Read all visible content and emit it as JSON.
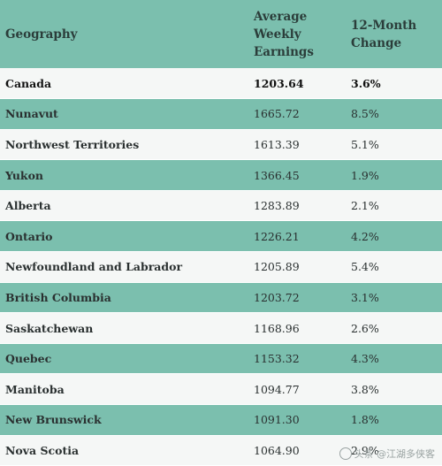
{
  "header": {
    "geography": "Geography",
    "earnings": "Average Weekly Earnings",
    "change": "12-Month Change"
  },
  "rows": [
    {
      "geo": "Canada",
      "earnings": "1203.64",
      "change": "3.6%"
    },
    {
      "geo": "Nunavut",
      "earnings": "1665.72",
      "change": "8.5%"
    },
    {
      "geo": "Northwest Territories",
      "earnings": "1613.39",
      "change": "5.1%"
    },
    {
      "geo": "Yukon",
      "earnings": "1366.45",
      "change": "1.9%"
    },
    {
      "geo": "Alberta",
      "earnings": "1283.89",
      "change": "2.1%"
    },
    {
      "geo": "Ontario",
      "earnings": "1226.21",
      "change": "4.2%"
    },
    {
      "geo": "Newfoundland and Labrador",
      "earnings": "1205.89",
      "change": "5.4%"
    },
    {
      "geo": "British Columbia",
      "earnings": "1203.72",
      "change": "3.1%"
    },
    {
      "geo": "Saskatchewan",
      "earnings": "1168.96",
      "change": "2.6%"
    },
    {
      "geo": "Quebec",
      "earnings": "1153.32",
      "change": "4.3%"
    },
    {
      "geo": "Manitoba",
      "earnings": "1094.77",
      "change": "3.8%"
    },
    {
      "geo": "New Brunswick",
      "earnings": "1091.30",
      "change": "1.8%"
    },
    {
      "geo": "Nova Scotia",
      "earnings": "1064.90",
      "change": "2.9%"
    }
  ],
  "colors": {
    "band": "#7bbfae",
    "light": "#f5f7f6"
  },
  "watermark": "头条 @江湖多侠客"
}
